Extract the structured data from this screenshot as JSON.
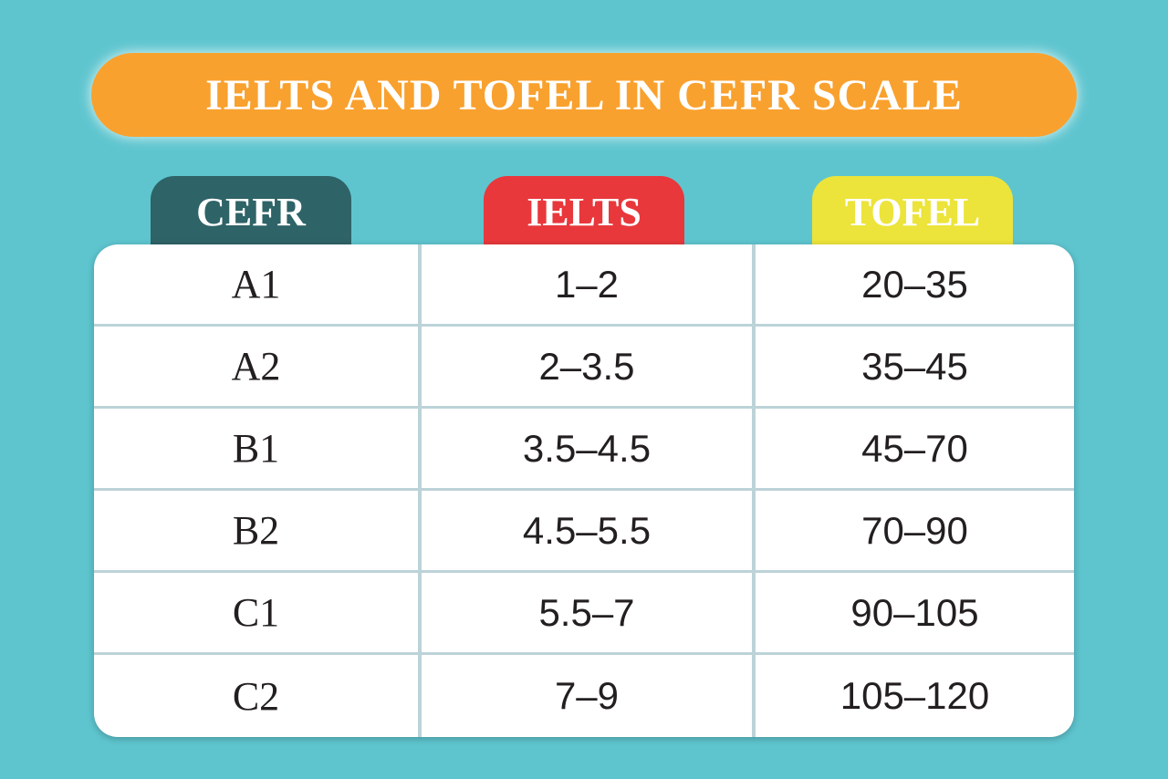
{
  "title": "IELTS AND TOFEL IN CEFR SCALE",
  "table": {
    "headers": [
      "CEFR",
      "IELTS",
      "TOFEL"
    ],
    "rows": [
      [
        "A1",
        "1–2",
        "20–35"
      ],
      [
        "A2",
        "2–3.5",
        "35–45"
      ],
      [
        "B1",
        "3.5–4.5",
        "45–70"
      ],
      [
        "B2",
        "4.5–5.5",
        "70–90"
      ],
      [
        "C1",
        "5.5–7",
        "90–105"
      ],
      [
        "C2",
        "7–9",
        "105–120"
      ]
    ]
  }
}
